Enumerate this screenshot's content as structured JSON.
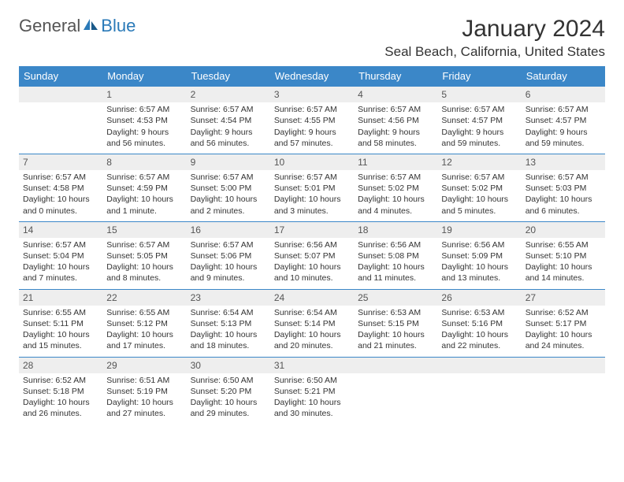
{
  "logo": {
    "text_general": "General",
    "text_blue": "Blue"
  },
  "title": "January 2024",
  "location": "Seal Beach, California, United States",
  "colors": {
    "header_bg": "#3b87c8",
    "header_text": "#ffffff",
    "daynum_bg": "#eeeeee",
    "daynum_border": "#3b87c8",
    "body_text": "#333333",
    "logo_gray": "#555555",
    "logo_blue": "#2a7ab8"
  },
  "day_headers": [
    "Sunday",
    "Monday",
    "Tuesday",
    "Wednesday",
    "Thursday",
    "Friday",
    "Saturday"
  ],
  "weeks": [
    [
      {
        "num": "",
        "sunrise": "",
        "sunset": "",
        "daylight1": "",
        "daylight2": ""
      },
      {
        "num": "1",
        "sunrise": "Sunrise: 6:57 AM",
        "sunset": "Sunset: 4:53 PM",
        "daylight1": "Daylight: 9 hours",
        "daylight2": "and 56 minutes."
      },
      {
        "num": "2",
        "sunrise": "Sunrise: 6:57 AM",
        "sunset": "Sunset: 4:54 PM",
        "daylight1": "Daylight: 9 hours",
        "daylight2": "and 56 minutes."
      },
      {
        "num": "3",
        "sunrise": "Sunrise: 6:57 AM",
        "sunset": "Sunset: 4:55 PM",
        "daylight1": "Daylight: 9 hours",
        "daylight2": "and 57 minutes."
      },
      {
        "num": "4",
        "sunrise": "Sunrise: 6:57 AM",
        "sunset": "Sunset: 4:56 PM",
        "daylight1": "Daylight: 9 hours",
        "daylight2": "and 58 minutes."
      },
      {
        "num": "5",
        "sunrise": "Sunrise: 6:57 AM",
        "sunset": "Sunset: 4:57 PM",
        "daylight1": "Daylight: 9 hours",
        "daylight2": "and 59 minutes."
      },
      {
        "num": "6",
        "sunrise": "Sunrise: 6:57 AM",
        "sunset": "Sunset: 4:57 PM",
        "daylight1": "Daylight: 9 hours",
        "daylight2": "and 59 minutes."
      }
    ],
    [
      {
        "num": "7",
        "sunrise": "Sunrise: 6:57 AM",
        "sunset": "Sunset: 4:58 PM",
        "daylight1": "Daylight: 10 hours",
        "daylight2": "and 0 minutes."
      },
      {
        "num": "8",
        "sunrise": "Sunrise: 6:57 AM",
        "sunset": "Sunset: 4:59 PM",
        "daylight1": "Daylight: 10 hours",
        "daylight2": "and 1 minute."
      },
      {
        "num": "9",
        "sunrise": "Sunrise: 6:57 AM",
        "sunset": "Sunset: 5:00 PM",
        "daylight1": "Daylight: 10 hours",
        "daylight2": "and 2 minutes."
      },
      {
        "num": "10",
        "sunrise": "Sunrise: 6:57 AM",
        "sunset": "Sunset: 5:01 PM",
        "daylight1": "Daylight: 10 hours",
        "daylight2": "and 3 minutes."
      },
      {
        "num": "11",
        "sunrise": "Sunrise: 6:57 AM",
        "sunset": "Sunset: 5:02 PM",
        "daylight1": "Daylight: 10 hours",
        "daylight2": "and 4 minutes."
      },
      {
        "num": "12",
        "sunrise": "Sunrise: 6:57 AM",
        "sunset": "Sunset: 5:02 PM",
        "daylight1": "Daylight: 10 hours",
        "daylight2": "and 5 minutes."
      },
      {
        "num": "13",
        "sunrise": "Sunrise: 6:57 AM",
        "sunset": "Sunset: 5:03 PM",
        "daylight1": "Daylight: 10 hours",
        "daylight2": "and 6 minutes."
      }
    ],
    [
      {
        "num": "14",
        "sunrise": "Sunrise: 6:57 AM",
        "sunset": "Sunset: 5:04 PM",
        "daylight1": "Daylight: 10 hours",
        "daylight2": "and 7 minutes."
      },
      {
        "num": "15",
        "sunrise": "Sunrise: 6:57 AM",
        "sunset": "Sunset: 5:05 PM",
        "daylight1": "Daylight: 10 hours",
        "daylight2": "and 8 minutes."
      },
      {
        "num": "16",
        "sunrise": "Sunrise: 6:57 AM",
        "sunset": "Sunset: 5:06 PM",
        "daylight1": "Daylight: 10 hours",
        "daylight2": "and 9 minutes."
      },
      {
        "num": "17",
        "sunrise": "Sunrise: 6:56 AM",
        "sunset": "Sunset: 5:07 PM",
        "daylight1": "Daylight: 10 hours",
        "daylight2": "and 10 minutes."
      },
      {
        "num": "18",
        "sunrise": "Sunrise: 6:56 AM",
        "sunset": "Sunset: 5:08 PM",
        "daylight1": "Daylight: 10 hours",
        "daylight2": "and 11 minutes."
      },
      {
        "num": "19",
        "sunrise": "Sunrise: 6:56 AM",
        "sunset": "Sunset: 5:09 PM",
        "daylight1": "Daylight: 10 hours",
        "daylight2": "and 13 minutes."
      },
      {
        "num": "20",
        "sunrise": "Sunrise: 6:55 AM",
        "sunset": "Sunset: 5:10 PM",
        "daylight1": "Daylight: 10 hours",
        "daylight2": "and 14 minutes."
      }
    ],
    [
      {
        "num": "21",
        "sunrise": "Sunrise: 6:55 AM",
        "sunset": "Sunset: 5:11 PM",
        "daylight1": "Daylight: 10 hours",
        "daylight2": "and 15 minutes."
      },
      {
        "num": "22",
        "sunrise": "Sunrise: 6:55 AM",
        "sunset": "Sunset: 5:12 PM",
        "daylight1": "Daylight: 10 hours",
        "daylight2": "and 17 minutes."
      },
      {
        "num": "23",
        "sunrise": "Sunrise: 6:54 AM",
        "sunset": "Sunset: 5:13 PM",
        "daylight1": "Daylight: 10 hours",
        "daylight2": "and 18 minutes."
      },
      {
        "num": "24",
        "sunrise": "Sunrise: 6:54 AM",
        "sunset": "Sunset: 5:14 PM",
        "daylight1": "Daylight: 10 hours",
        "daylight2": "and 20 minutes."
      },
      {
        "num": "25",
        "sunrise": "Sunrise: 6:53 AM",
        "sunset": "Sunset: 5:15 PM",
        "daylight1": "Daylight: 10 hours",
        "daylight2": "and 21 minutes."
      },
      {
        "num": "26",
        "sunrise": "Sunrise: 6:53 AM",
        "sunset": "Sunset: 5:16 PM",
        "daylight1": "Daylight: 10 hours",
        "daylight2": "and 22 minutes."
      },
      {
        "num": "27",
        "sunrise": "Sunrise: 6:52 AM",
        "sunset": "Sunset: 5:17 PM",
        "daylight1": "Daylight: 10 hours",
        "daylight2": "and 24 minutes."
      }
    ],
    [
      {
        "num": "28",
        "sunrise": "Sunrise: 6:52 AM",
        "sunset": "Sunset: 5:18 PM",
        "daylight1": "Daylight: 10 hours",
        "daylight2": "and 26 minutes."
      },
      {
        "num": "29",
        "sunrise": "Sunrise: 6:51 AM",
        "sunset": "Sunset: 5:19 PM",
        "daylight1": "Daylight: 10 hours",
        "daylight2": "and 27 minutes."
      },
      {
        "num": "30",
        "sunrise": "Sunrise: 6:50 AM",
        "sunset": "Sunset: 5:20 PM",
        "daylight1": "Daylight: 10 hours",
        "daylight2": "and 29 minutes."
      },
      {
        "num": "31",
        "sunrise": "Sunrise: 6:50 AM",
        "sunset": "Sunset: 5:21 PM",
        "daylight1": "Daylight: 10 hours",
        "daylight2": "and 30 minutes."
      },
      {
        "num": "",
        "sunrise": "",
        "sunset": "",
        "daylight1": "",
        "daylight2": ""
      },
      {
        "num": "",
        "sunrise": "",
        "sunset": "",
        "daylight1": "",
        "daylight2": ""
      },
      {
        "num": "",
        "sunrise": "",
        "sunset": "",
        "daylight1": "",
        "daylight2": ""
      }
    ]
  ]
}
